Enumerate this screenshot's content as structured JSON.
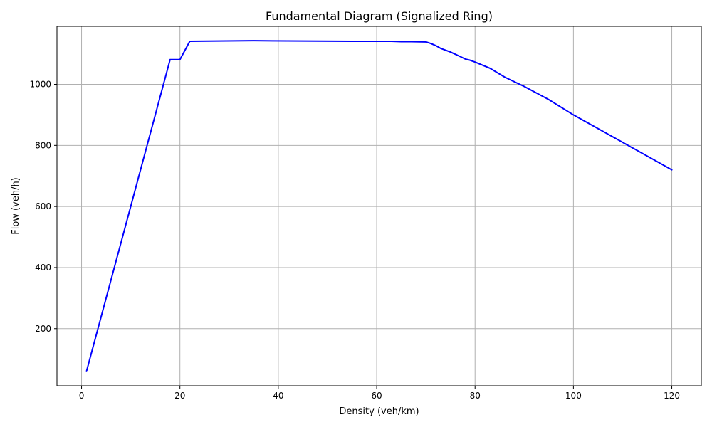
{
  "chart_data": {
    "type": "line",
    "title": "Fundamental Diagram (Signalized Ring)",
    "xlabel": "Density (veh/km)",
    "ylabel": "Flow (veh/h)",
    "xlim": [
      -5,
      126
    ],
    "ylim": [
      13,
      1190
    ],
    "xticks": [
      0,
      20,
      40,
      60,
      80,
      100,
      120
    ],
    "yticks": [
      200,
      400,
      600,
      800,
      1000
    ],
    "grid": true,
    "series": [
      {
        "color": "#0000ff",
        "points": [
          [
            1,
            60
          ],
          [
            18,
            1081
          ],
          [
            20,
            1081
          ],
          [
            22,
            1141
          ],
          [
            35,
            1143
          ],
          [
            45,
            1142
          ],
          [
            55,
            1141
          ],
          [
            63,
            1141
          ],
          [
            65,
            1140
          ],
          [
            67,
            1140
          ],
          [
            70,
            1139
          ],
          [
            71,
            1134
          ],
          [
            72,
            1127
          ],
          [
            73,
            1118
          ],
          [
            75,
            1106
          ],
          [
            77,
            1091
          ],
          [
            78,
            1083
          ],
          [
            79,
            1079
          ],
          [
            80,
            1073
          ],
          [
            83,
            1053
          ],
          [
            86,
            1024
          ],
          [
            87,
            1016
          ],
          [
            90,
            993
          ],
          [
            95,
            950
          ],
          [
            100,
            900
          ],
          [
            110,
            810
          ],
          [
            120,
            720
          ]
        ]
      }
    ]
  }
}
